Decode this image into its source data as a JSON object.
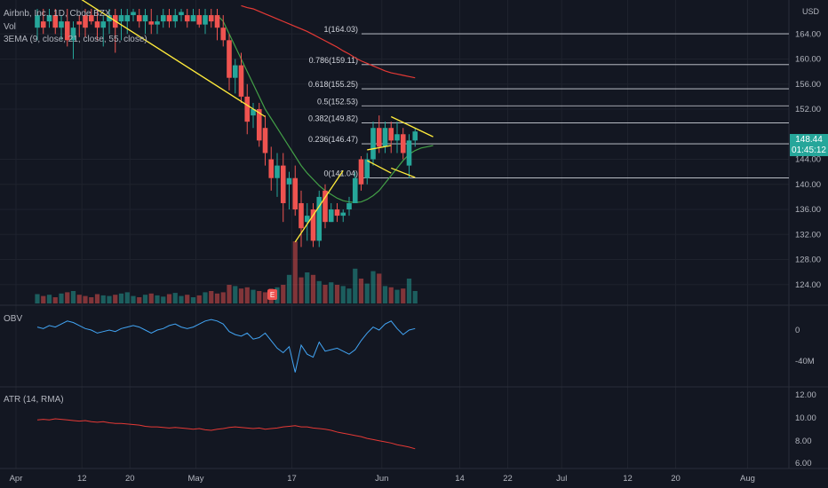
{
  "header": {
    "title": "Airbnb, Inc., 1D, Cboe BZX",
    "vol_label": "Vol",
    "ema_label": "3EMA (9, close, 21, close, 55, close)"
  },
  "panes": {
    "obv_label": "OBV",
    "atr_label": "ATR (14, RMA)"
  },
  "price_axis": {
    "currency": "USD",
    "last_price": "148.44",
    "countdown": "01:45:12",
    "ticks": [
      "164.00",
      "160.00",
      "156.00",
      "152.00",
      "144.00",
      "140.00",
      "136.00",
      "132.00",
      "128.00",
      "124.00"
    ]
  },
  "obv_axis": {
    "ticks": [
      "0",
      "-40M"
    ]
  },
  "atr_axis": {
    "ticks": [
      "12.00",
      "10.00",
      "8.00",
      "6.00"
    ]
  },
  "time_axis": {
    "labels": [
      {
        "text": "Apr",
        "day": 0
      },
      {
        "text": "12",
        "day": 11
      },
      {
        "text": "20",
        "day": 19
      },
      {
        "text": "May",
        "day": 30
      },
      {
        "text": "17",
        "day": 46
      },
      {
        "text": "Jun",
        "day": 61
      },
      {
        "text": "14",
        "day": 74
      },
      {
        "text": "22",
        "day": 82
      },
      {
        "text": "Jul",
        "day": 91
      },
      {
        "text": "12",
        "day": 102
      },
      {
        "text": "20",
        "day": 110
      },
      {
        "text": "Aug",
        "day": 122
      }
    ]
  },
  "chart_data": {
    "type": "candlestick",
    "title": "Airbnb, Inc., 1D, Cboe BZX",
    "ylim": [
      121,
      168
    ],
    "colors": {
      "up": "#26a69a",
      "down": "#ef5350",
      "pattern": "#ffeb3b",
      "ema_fast": "#ffeb3b",
      "ema_mid": "#43a047",
      "ema_slow": "#e53935",
      "obv": "#42a5f5",
      "atr": "#e53935"
    },
    "candles": [
      {
        "o": 165,
        "h": 168,
        "l": 163,
        "c": 167
      },
      {
        "o": 166,
        "h": 168,
        "l": 164,
        "c": 165
      },
      {
        "o": 166,
        "h": 168,
        "l": 165,
        "c": 167
      },
      {
        "o": 167,
        "h": 168,
        "l": 164,
        "c": 165
      },
      {
        "o": 165,
        "h": 167,
        "l": 163,
        "c": 166
      },
      {
        "o": 166,
        "h": 168,
        "l": 162,
        "c": 163
      },
      {
        "o": 163,
        "h": 166,
        "l": 160,
        "c": 165
      },
      {
        "o": 166,
        "h": 167,
        "l": 163.5,
        "c": 165.5
      },
      {
        "o": 167,
        "h": 168,
        "l": 163.5,
        "c": 165
      },
      {
        "o": 167,
        "h": 168,
        "l": 165.5,
        "c": 166
      },
      {
        "o": 166,
        "h": 168,
        "l": 163,
        "c": 165
      },
      {
        "o": 165,
        "h": 167,
        "l": 162,
        "c": 166
      },
      {
        "o": 166,
        "h": 168,
        "l": 164,
        "c": 167
      },
      {
        "o": 167,
        "h": 168,
        "l": 161,
        "c": 165
      },
      {
        "o": 166,
        "h": 168,
        "l": 163,
        "c": 167
      },
      {
        "o": 166,
        "h": 168,
        "l": 164,
        "c": 167
      },
      {
        "o": 167,
        "h": 168,
        "l": 166,
        "c": 167.5
      },
      {
        "o": 167,
        "h": 168,
        "l": 165,
        "c": 166
      },
      {
        "o": 166,
        "h": 168,
        "l": 164,
        "c": 167
      },
      {
        "o": 166,
        "h": 168,
        "l": 164,
        "c": 165.5
      },
      {
        "o": 165.5,
        "h": 167,
        "l": 164,
        "c": 166
      },
      {
        "o": 166,
        "h": 168,
        "l": 165,
        "c": 167
      },
      {
        "o": 167,
        "h": 168,
        "l": 165,
        "c": 166
      },
      {
        "o": 166,
        "h": 168,
        "l": 165,
        "c": 167
      },
      {
        "o": 167,
        "h": 168,
        "l": 166,
        "c": 167.5
      },
      {
        "o": 167,
        "h": 168,
        "l": 165,
        "c": 166
      },
      {
        "o": 166,
        "h": 168,
        "l": 166,
        "c": 167
      },
      {
        "o": 167,
        "h": 168,
        "l": 165,
        "c": 165.5
      },
      {
        "o": 165.5,
        "h": 168,
        "l": 164,
        "c": 167
      },
      {
        "o": 167,
        "h": 168,
        "l": 165,
        "c": 166
      },
      {
        "o": 167,
        "h": 168,
        "l": 163,
        "c": 165
      },
      {
        "o": 165,
        "h": 167,
        "l": 162,
        "c": 163
      },
      {
        "o": 163,
        "h": 164,
        "l": 155,
        "c": 157
      },
      {
        "o": 157,
        "h": 160,
        "l": 154.5,
        "c": 159
      },
      {
        "o": 159,
        "h": 161,
        "l": 153,
        "c": 154
      },
      {
        "o": 154,
        "h": 156,
        "l": 148,
        "c": 150
      },
      {
        "o": 151,
        "h": 153,
        "l": 149,
        "c": 152
      },
      {
        "o": 152,
        "h": 153,
        "l": 146,
        "c": 147
      },
      {
        "o": 149,
        "h": 151,
        "l": 143,
        "c": 145
      },
      {
        "o": 144,
        "h": 146,
        "l": 139,
        "c": 141
      },
      {
        "o": 141,
        "h": 145,
        "l": 138,
        "c": 143
      },
      {
        "o": 143,
        "h": 145,
        "l": 134,
        "c": 137
      },
      {
        "o": 140,
        "h": 142,
        "l": 136,
        "c": 141
      },
      {
        "o": 141,
        "h": 143,
        "l": 135,
        "c": 136
      },
      {
        "o": 137,
        "h": 139,
        "l": 130,
        "c": 133
      },
      {
        "o": 134,
        "h": 137,
        "l": 131,
        "c": 135
      },
      {
        "o": 136,
        "h": 137,
        "l": 130,
        "c": 131
      },
      {
        "o": 131,
        "h": 139,
        "l": 130,
        "c": 138
      },
      {
        "o": 139,
        "h": 140,
        "l": 133,
        "c": 134
      },
      {
        "o": 134,
        "h": 137,
        "l": 134,
        "c": 136
      },
      {
        "o": 136,
        "h": 137,
        "l": 134,
        "c": 135
      },
      {
        "o": 135,
        "h": 136,
        "l": 134,
        "c": 135.5
      },
      {
        "o": 136,
        "h": 138,
        "l": 135,
        "c": 137
      },
      {
        "o": 137,
        "h": 142,
        "l": 137,
        "c": 141
      },
      {
        "o": 144,
        "h": 144.5,
        "l": 139,
        "c": 140
      },
      {
        "o": 141,
        "h": 145,
        "l": 140,
        "c": 144
      },
      {
        "o": 144,
        "h": 150,
        "l": 143,
        "c": 149
      },
      {
        "o": 149,
        "h": 151,
        "l": 145,
        "c": 146
      },
      {
        "o": 146,
        "h": 150,
        "l": 145,
        "c": 149
      },
      {
        "o": 149,
        "h": 150,
        "l": 145,
        "c": 147
      },
      {
        "o": 147,
        "h": 150,
        "l": 145,
        "c": 148
      },
      {
        "o": 148,
        "h": 149,
        "l": 144,
        "c": 145
      },
      {
        "o": 143,
        "h": 148,
        "l": 141,
        "c": 147
      },
      {
        "o": 147,
        "h": 149,
        "l": 146,
        "c": 148.44
      }
    ],
    "volume": [
      0.15,
      0.12,
      0.14,
      0.1,
      0.16,
      0.18,
      0.2,
      0.14,
      0.12,
      0.1,
      0.15,
      0.13,
      0.12,
      0.14,
      0.16,
      0.18,
      0.12,
      0.1,
      0.14,
      0.16,
      0.13,
      0.11,
      0.15,
      0.17,
      0.12,
      0.14,
      0.1,
      0.13,
      0.18,
      0.2,
      0.16,
      0.18,
      0.3,
      0.28,
      0.24,
      0.26,
      0.22,
      0.2,
      0.18,
      0.24,
      0.26,
      0.3,
      0.46,
      1.0,
      0.42,
      0.5,
      0.46,
      0.36,
      0.3,
      0.34,
      0.3,
      0.28,
      0.24,
      0.56,
      0.4,
      0.32,
      0.52,
      0.48,
      0.28,
      0.26,
      0.22,
      0.24,
      0.4,
      0.2
    ],
    "obv": [
      2,
      1,
      3,
      2,
      4,
      6,
      5,
      3,
      1,
      0,
      -2,
      -1,
      0,
      -1,
      1,
      2,
      3,
      2,
      0,
      -2,
      0,
      1,
      3,
      4,
      2,
      1,
      2,
      4,
      6,
      7,
      6,
      4,
      -1,
      -3,
      -4,
      -2,
      -6,
      -5,
      -2,
      -7,
      -12,
      -15,
      -11,
      -28,
      -10,
      -16,
      -18,
      -8,
      -14,
      -13,
      -12,
      -14,
      -16,
      -13,
      -7,
      -2,
      2,
      0,
      4,
      6,
      1,
      -3,
      0,
      1
    ],
    "atr": [
      9.1,
      9.15,
      9.1,
      9.2,
      9.15,
      9.1,
      9.05,
      9.0,
      9.05,
      8.95,
      8.9,
      8.95,
      8.85,
      8.8,
      8.8,
      8.75,
      8.7,
      8.65,
      8.55,
      8.5,
      8.5,
      8.45,
      8.4,
      8.45,
      8.4,
      8.35,
      8.3,
      8.35,
      8.25,
      8.2,
      8.3,
      8.35,
      8.45,
      8.5,
      8.45,
      8.4,
      8.35,
      8.4,
      8.3,
      8.35,
      8.4,
      8.5,
      8.55,
      8.6,
      8.5,
      8.5,
      8.4,
      8.35,
      8.3,
      8.2,
      8.05,
      7.95,
      7.85,
      7.75,
      7.65,
      7.5,
      7.4,
      7.3,
      7.2,
      7.1,
      6.95,
      6.85,
      6.75,
      6.6
    ],
    "ema_slow": [
      168.5,
      168.2,
      168.0,
      167.6,
      167.2,
      166.8,
      166.4,
      166.0,
      165.6,
      165.2,
      164.8,
      164.4,
      163.9,
      163.4,
      162.9,
      162.4,
      161.9,
      161.3,
      160.8,
      160.2,
      159.7,
      159.3,
      158.9,
      158.5,
      158.1,
      157.8,
      157.6,
      157.4,
      157.2,
      157.0
    ],
    "ema_mid_start": 30,
    "ema_mid": [
      167,
      166,
      164,
      162,
      160,
      158,
      156,
      154,
      152,
      150.5,
      149,
      147.5,
      146,
      144.5,
      143,
      141.8,
      140.8,
      139.8,
      139,
      138.4,
      137.8,
      137.4,
      137.2,
      137.1,
      137.2,
      137.6,
      138.2,
      139,
      140.2,
      141.4,
      142.6,
      143.8,
      144.8,
      145.4,
      145.8,
      146,
      146.2
    ],
    "fib_levels": [
      {
        "label": "1(164.03)",
        "price": 164.03
      },
      {
        "label": "0.786(159.11)",
        "price": 159.11
      },
      {
        "label": "0.618(155.25)",
        "price": 155.25
      },
      {
        "label": "0.5(152.53)",
        "price": 152.53
      },
      {
        "label": "0.382(149.82)",
        "price": 149.82
      },
      {
        "label": "0.236(146.47)",
        "price": 146.47
      },
      {
        "label": "0(141.04)",
        "price": 141.04
      }
    ],
    "pattern_lines": [
      {
        "x1": 0,
        "p1": 174,
        "x2": 38,
        "p2": 150.8
      },
      {
        "x1": 43,
        "p1": 130.8,
        "x2": 51,
        "p2": 142.2
      },
      {
        "x1": 55,
        "p1": 145.5,
        "x2": 59,
        "p2": 146.2
      },
      {
        "x1": 55,
        "p1": 143.8,
        "x2": 59,
        "p2": 141.8
      },
      {
        "x1": 59,
        "p1": 150.8,
        "x2": 66,
        "p2": 147.6
      },
      {
        "x1": 59,
        "p1": 142.6,
        "x2": 63,
        "p2": 141.1
      }
    ]
  }
}
